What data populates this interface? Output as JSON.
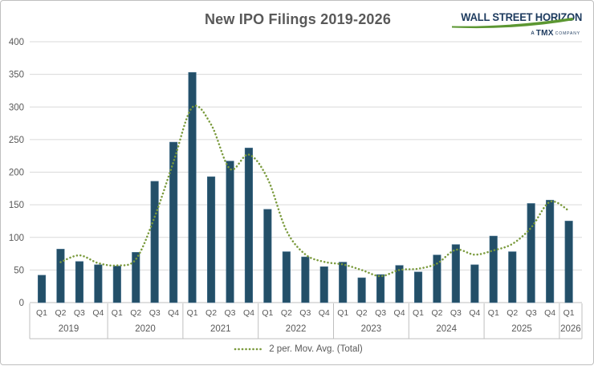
{
  "title": "New IPO Filings 2019-2026",
  "logo": {
    "brand": "WALL STREET HORIZON",
    "tagline_prefix": "A",
    "tagline_brand": "TMX",
    "tagline_suffix": "COMPANY"
  },
  "legend": {
    "label": "2 per. Mov. Avg. (Total)"
  },
  "colors": {
    "bar": "#234F68",
    "bar_edge": "#44708C",
    "line": "#7A9A3C",
    "grid": "#D9D9D9",
    "axis": "#BFBFBF",
    "text": "#595959",
    "title": "#595959",
    "logo_navy": "#1C3A5E",
    "logo_green": "#5C9732",
    "border": "#BFBFBF"
  },
  "chart_data": {
    "type": "bar",
    "title": "New IPO Filings 2019-2026",
    "x_groups": [
      {
        "year": "2019",
        "quarters": [
          "Q1",
          "Q2",
          "Q3",
          "Q4"
        ]
      },
      {
        "year": "2020",
        "quarters": [
          "Q1",
          "Q2",
          "Q3",
          "Q4"
        ]
      },
      {
        "year": "2021",
        "quarters": [
          "Q1",
          "Q2",
          "Q3",
          "Q4"
        ]
      },
      {
        "year": "2022",
        "quarters": [
          "Q1",
          "Q2",
          "Q3",
          "Q4"
        ]
      },
      {
        "year": "2023",
        "quarters": [
          "Q1",
          "Q2",
          "Q3",
          "Q4"
        ]
      },
      {
        "year": "2024",
        "quarters": [
          "Q1",
          "Q2",
          "Q3",
          "Q4"
        ]
      },
      {
        "year": "2025",
        "quarters": [
          "Q1",
          "Q2",
          "Q3",
          "Q4"
        ]
      },
      {
        "year": "2026",
        "quarters": [
          "Q1"
        ]
      }
    ],
    "series": [
      {
        "name": "Total",
        "type": "bar",
        "color": "#234F68",
        "values": [
          42,
          82,
          63,
          58,
          56,
          77,
          186,
          246,
          353,
          193,
          217,
          237,
          143,
          78,
          70,
          55,
          62,
          38,
          43,
          57,
          47,
          73,
          89,
          58,
          102,
          78,
          152,
          157,
          125
        ]
      },
      {
        "name": "2 per. Mov. Avg. (Total)",
        "type": "dotted_line",
        "color": "#7A9A3C",
        "values": [
          null,
          62,
          72.5,
          60.5,
          57,
          66.5,
          131.5,
          216,
          299.5,
          273,
          205,
          227,
          190,
          110.5,
          74,
          62.5,
          58.5,
          50,
          40.5,
          50,
          52,
          60,
          81,
          73.5,
          80,
          90,
          115,
          154.5,
          141
        ]
      }
    ],
    "ylim": [
      0,
      400
    ],
    "yticks": [
      0,
      50,
      100,
      150,
      200,
      250,
      300,
      350,
      400
    ],
    "grid": true,
    "legend_position": "bottom"
  }
}
